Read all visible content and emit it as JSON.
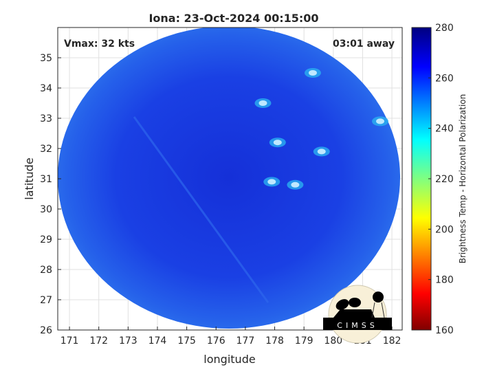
{
  "title": "Iona: 23-Oct-2024 00:15:00",
  "annotations": {
    "vmax": "Vmax: 32 kts",
    "away": "03:01 away"
  },
  "logo": {
    "text": "CIMSS"
  },
  "chart_data": {
    "type": "heatmap",
    "title": "Iona: 23-Oct-2024 00:15:00",
    "xlabel": "longitude",
    "ylabel": "latitude",
    "xlim": [
      170.6,
      182.35
    ],
    "ylim": [
      26,
      36
    ],
    "xticks": [
      "171",
      "172",
      "173",
      "174",
      "175",
      "176",
      "177",
      "178",
      "179",
      "180",
      "181",
      "182"
    ],
    "yticks": [
      "26",
      "27",
      "28",
      "29",
      "30",
      "31",
      "32",
      "33",
      "34",
      "35"
    ],
    "grid": true,
    "colorbar": {
      "label": "Brightness Temp - Horizontal Polarization",
      "range": [
        160,
        280
      ],
      "ticks": [
        "160",
        "180",
        "200",
        "220",
        "240",
        "260",
        "280"
      ],
      "colormap": "jet"
    },
    "bright_features": [
      {
        "lon": 177.6,
        "lat": 33.5
      },
      {
        "lon": 178.1,
        "lat": 32.2
      },
      {
        "lon": 179.6,
        "lat": 31.9
      },
      {
        "lon": 177.9,
        "lat": 30.9
      },
      {
        "lon": 178.7,
        "lat": 30.8
      },
      {
        "lon": 181.6,
        "lat": 32.9
      },
      {
        "lon": 179.3,
        "lat": 34.5
      }
    ]
  },
  "colors": {
    "disc_base": "#1a3fe0",
    "disc_light": "#2f7df0",
    "feature": "#bfe8ff"
  }
}
